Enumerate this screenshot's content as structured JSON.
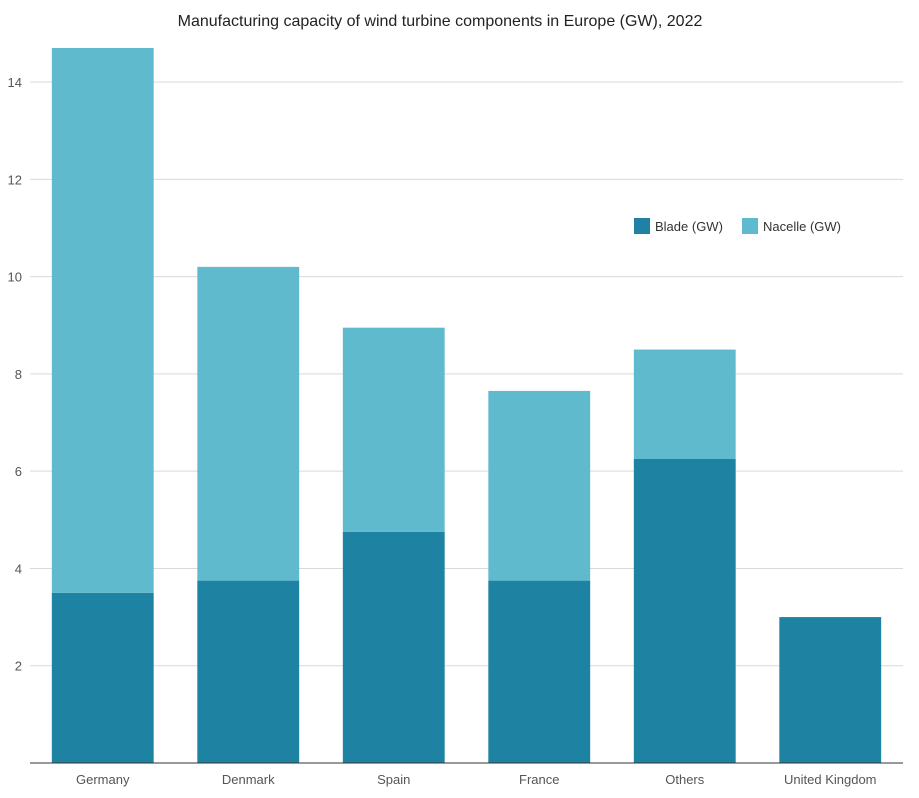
{
  "chart_data": {
    "type": "bar",
    "stacked": true,
    "title": "Manufacturing capacity of wind turbine components in Europe (GW), 2022",
    "categories": [
      "Germany",
      "Denmark",
      "Spain",
      "France",
      "Others",
      "United Kingdom"
    ],
    "series": [
      {
        "name": "Blade (GW)",
        "color": "#1e82a2",
        "values": [
          3.5,
          3.75,
          4.75,
          3.75,
          6.25,
          3.0
        ]
      },
      {
        "name": "Nacelle (GW)",
        "color": "#60bace",
        "values": [
          11.2,
          6.45,
          4.2,
          3.9,
          2.25,
          0
        ]
      }
    ],
    "xlabel": "",
    "ylabel": "",
    "ylim": [
      0,
      14.7
    ],
    "yticks": [
      2,
      4,
      6,
      8,
      10,
      12,
      14
    ],
    "grid": true,
    "legend": "top-right"
  }
}
